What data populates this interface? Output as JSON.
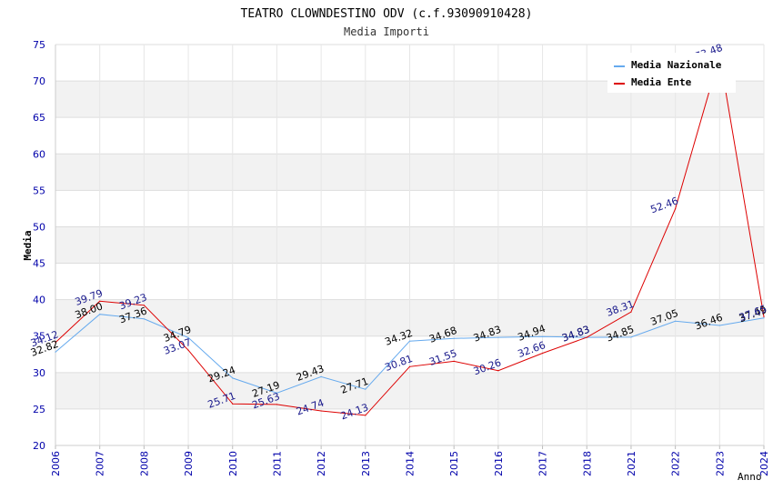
{
  "chart_data": {
    "type": "line",
    "title": "TEATRO CLOWNDESTINO ODV (c.f.93090910428)",
    "subtitle": "Media Importi",
    "ylabel": "Media",
    "xlabel": "Anno",
    "ylim": [
      20,
      75
    ],
    "yticks": [
      20,
      25,
      30,
      35,
      40,
      45,
      50,
      55,
      60,
      65,
      70,
      75
    ],
    "categories": [
      "2006",
      "2007",
      "2008",
      "2009",
      "2010",
      "2011",
      "2012",
      "2013",
      "2014",
      "2015",
      "2016",
      "2017",
      "2018",
      "2021",
      "2022",
      "2023",
      "2024"
    ],
    "series": [
      {
        "name": "Media Nazionale",
        "color": "#66aaee",
        "values": [
          32.82,
          38.0,
          37.36,
          34.79,
          29.24,
          27.19,
          29.43,
          27.71,
          34.32,
          34.68,
          34.83,
          34.94,
          34.83,
          34.85,
          37.05,
          36.46,
          37.49
        ],
        "labels": [
          "32.82",
          "38.00",
          "37.36",
          "34.79",
          "29.24",
          "27.19",
          "29.43",
          "27.71",
          "34.32",
          "34.68",
          "34.83",
          "34.94",
          "34.83",
          "34.85",
          "37.05",
          "36.46",
          "37.49"
        ]
      },
      {
        "name": "Media Ente",
        "color": "#dd0000",
        "values": [
          34.12,
          39.79,
          39.23,
          33.07,
          25.71,
          25.63,
          24.74,
          24.13,
          30.81,
          31.55,
          30.26,
          32.66,
          34.83,
          38.31,
          52.46,
          73.48,
          37.65
        ],
        "labels": [
          "34.12",
          "39.79",
          "39.23",
          "33.07",
          "25.71",
          "25.63",
          "24.74",
          "24.13",
          "30.81",
          "31.55",
          "30.26",
          "32.66",
          "34.83",
          "38.31",
          "52.46",
          "73.48",
          "37.65"
        ]
      }
    ],
    "grid": true,
    "legend_position": "top-right"
  }
}
